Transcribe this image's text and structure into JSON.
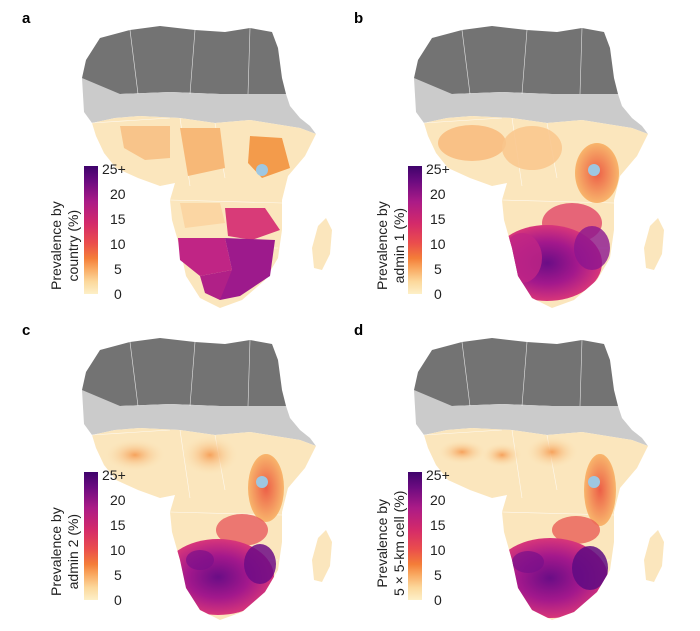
{
  "panels": [
    {
      "letter": "a",
      "legend_title_line1": "Prevalence by",
      "legend_title_line2": "country (%)"
    },
    {
      "letter": "b",
      "legend_title_line1": "Prevalence by",
      "legend_title_line2": "admin 1 (%)"
    },
    {
      "letter": "c",
      "legend_title_line1": "Prevalence by",
      "legend_title_line2": "admin 2 (%)"
    },
    {
      "letter": "d",
      "legend_title_line1": "Prevalence by",
      "legend_title_line2": "5 × 5-km cell (%)"
    }
  ],
  "legend_ticks": [
    "25+",
    "20",
    "15",
    "10",
    "5",
    "0"
  ],
  "colors": {
    "north_africa": "#777777",
    "sahel": "#c8c8c8",
    "low": "#fbe6b8",
    "mid": "#f7b06a",
    "high": "#d83a7a",
    "top": "#8f1390",
    "water": "#9ec7e2"
  }
}
